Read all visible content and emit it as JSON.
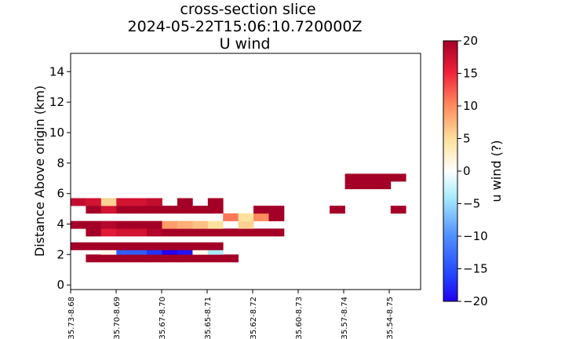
{
  "chart_data": {
    "type": "heatmap",
    "title_lines": [
      "cross-section slice",
      "2024-05-22T15:06:10.720000Z",
      "U wind"
    ],
    "ylabel": "Distance Above origin (km)",
    "xlabel": "",
    "ylim": [
      -0.3,
      15.2
    ],
    "y_ticks": [
      0,
      2,
      4,
      6,
      8,
      10,
      12,
      14
    ],
    "x_tick_labels": [
      "35.73-8.68",
      "35.70-8.69",
      "35.67-8.70",
      "35.65-8.71",
      "35.62-8.72",
      "35.60-8.73",
      "35.57-8.74",
      "35.54-8.75"
    ],
    "n_columns": 23,
    "grid": false,
    "colorbar": {
      "label": "u wind (?)",
      "range": [
        -20,
        20
      ],
      "ticks": [
        20,
        15,
        10,
        5,
        0,
        -5,
        -10,
        -15,
        -20
      ],
      "colormap": "RdYlBu_r"
    },
    "cells": [
      {
        "col": 1,
        "y": [
          1.5,
          2.0
        ],
        "u": 20
      },
      {
        "col": 2,
        "y": [
          1.5,
          2.0
        ],
        "u": 20
      },
      {
        "col": 3,
        "y": [
          1.5,
          2.0
        ],
        "u": 20
      },
      {
        "col": 4,
        "y": [
          1.5,
          2.0
        ],
        "u": 20
      },
      {
        "col": 5,
        "y": [
          1.5,
          2.0
        ],
        "u": 20
      },
      {
        "col": 6,
        "y": [
          1.5,
          2.0
        ],
        "u": 20
      },
      {
        "col": 7,
        "y": [
          1.5,
          2.0
        ],
        "u": 20
      },
      {
        "col": 8,
        "y": [
          1.5,
          2.0
        ],
        "u": 20
      },
      {
        "col": 9,
        "y": [
          1.5,
          2.0
        ],
        "u": 20
      },
      {
        "col": 10,
        "y": [
          1.5,
          2.0
        ],
        "u": 20
      },
      {
        "col": 2,
        "y": [
          2.0,
          2.5
        ],
        "u": 1
      },
      {
        "col": 3,
        "y": [
          2.0,
          2.5
        ],
        "u": -14
      },
      {
        "col": 4,
        "y": [
          2.0,
          2.5
        ],
        "u": -14
      },
      {
        "col": 5,
        "y": [
          2.0,
          2.5
        ],
        "u": -17
      },
      {
        "col": 6,
        "y": [
          2.0,
          2.5
        ],
        "u": -20
      },
      {
        "col": 7,
        "y": [
          2.0,
          2.5
        ],
        "u": -19
      },
      {
        "col": 8,
        "y": [
          2.0,
          2.5
        ],
        "u": 1
      },
      {
        "col": 9,
        "y": [
          2.0,
          2.5
        ],
        "u": -4
      },
      {
        "col": 0,
        "y": [
          2.3,
          2.8
        ],
        "u": 20
      },
      {
        "col": 1,
        "y": [
          2.3,
          2.8
        ],
        "u": 20
      },
      {
        "col": 2,
        "y": [
          2.3,
          2.8
        ],
        "u": 20
      },
      {
        "col": 3,
        "y": [
          2.3,
          2.8
        ],
        "u": 20
      },
      {
        "col": 4,
        "y": [
          2.3,
          2.8
        ],
        "u": 20
      },
      {
        "col": 5,
        "y": [
          2.3,
          2.8
        ],
        "u": 20
      },
      {
        "col": 6,
        "y": [
          2.3,
          2.8
        ],
        "u": 20
      },
      {
        "col": 7,
        "y": [
          2.3,
          2.8
        ],
        "u": 20
      },
      {
        "col": 8,
        "y": [
          2.3,
          2.8
        ],
        "u": 20
      },
      {
        "col": 9,
        "y": [
          2.3,
          2.8
        ],
        "u": 20
      },
      {
        "col": 1,
        "y": [
          3.2,
          3.7
        ],
        "u": 20
      },
      {
        "col": 2,
        "y": [
          3.2,
          3.7
        ],
        "u": 16
      },
      {
        "col": 3,
        "y": [
          3.2,
          3.7
        ],
        "u": 17
      },
      {
        "col": 4,
        "y": [
          3.2,
          3.7
        ],
        "u": 17
      },
      {
        "col": 5,
        "y": [
          3.2,
          3.7
        ],
        "u": 19
      },
      {
        "col": 6,
        "y": [
          3.2,
          3.7
        ],
        "u": 20
      },
      {
        "col": 7,
        "y": [
          3.2,
          3.7
        ],
        "u": 20
      },
      {
        "col": 8,
        "y": [
          3.2,
          3.7
        ],
        "u": 20
      },
      {
        "col": 9,
        "y": [
          3.2,
          3.7
        ],
        "u": 20
      },
      {
        "col": 10,
        "y": [
          3.2,
          3.7
        ],
        "u": 20
      },
      {
        "col": 11,
        "y": [
          3.2,
          3.7
        ],
        "u": 20
      },
      {
        "col": 12,
        "y": [
          3.2,
          3.7
        ],
        "u": 20
      },
      {
        "col": 13,
        "y": [
          3.2,
          3.7
        ],
        "u": 20
      },
      {
        "col": 0,
        "y": [
          3.7,
          4.2
        ],
        "u": 20
      },
      {
        "col": 1,
        "y": [
          3.7,
          4.2
        ],
        "u": 20
      },
      {
        "col": 2,
        "y": [
          3.7,
          4.2
        ],
        "u": 19
      },
      {
        "col": 3,
        "y": [
          3.7,
          4.2
        ],
        "u": 20
      },
      {
        "col": 4,
        "y": [
          3.7,
          4.2
        ],
        "u": 20
      },
      {
        "col": 5,
        "y": [
          3.7,
          4.2
        ],
        "u": 20
      },
      {
        "col": 6,
        "y": [
          3.7,
          4.2
        ],
        "u": 9
      },
      {
        "col": 7,
        "y": [
          3.7,
          4.2
        ],
        "u": 8
      },
      {
        "col": 8,
        "y": [
          3.7,
          4.2
        ],
        "u": 7
      },
      {
        "col": 9,
        "y": [
          3.7,
          4.2
        ],
        "u": 5
      },
      {
        "col": 11,
        "y": [
          3.7,
          4.2
        ],
        "u": 6
      },
      {
        "col": 10,
        "y": [
          4.2,
          4.7
        ],
        "u": 11
      },
      {
        "col": 11,
        "y": [
          4.2,
          4.7
        ],
        "u": 5
      },
      {
        "col": 12,
        "y": [
          4.2,
          4.7
        ],
        "u": 10
      },
      {
        "col": 13,
        "y": [
          4.2,
          4.7
        ],
        "u": 20
      },
      {
        "col": 1,
        "y": [
          4.7,
          5.2
        ],
        "u": 20
      },
      {
        "col": 2,
        "y": [
          4.7,
          5.2
        ],
        "u": 17
      },
      {
        "col": 3,
        "y": [
          4.7,
          5.2
        ],
        "u": 20
      },
      {
        "col": 4,
        "y": [
          4.7,
          5.2
        ],
        "u": 20
      },
      {
        "col": 5,
        "y": [
          4.7,
          5.2
        ],
        "u": 20
      },
      {
        "col": 6,
        "y": [
          4.7,
          5.2
        ],
        "u": 20
      },
      {
        "col": 7,
        "y": [
          4.7,
          5.2
        ],
        "u": 20
      },
      {
        "col": 8,
        "y": [
          4.7,
          5.2
        ],
        "u": 20
      },
      {
        "col": 9,
        "y": [
          4.7,
          5.2
        ],
        "u": 20
      },
      {
        "col": 12,
        "y": [
          4.7,
          5.2
        ],
        "u": 20
      },
      {
        "col": 13,
        "y": [
          4.7,
          5.2
        ],
        "u": 20
      },
      {
        "col": 17,
        "y": [
          4.7,
          5.2
        ],
        "u": 20
      },
      {
        "col": 21,
        "y": [
          4.7,
          5.2
        ],
        "u": 20
      },
      {
        "col": 0,
        "y": [
          5.2,
          5.7
        ],
        "u": 18
      },
      {
        "col": 1,
        "y": [
          5.2,
          5.7
        ],
        "u": 17
      },
      {
        "col": 2,
        "y": [
          5.2,
          5.7
        ],
        "u": 6
      },
      {
        "col": 3,
        "y": [
          5.2,
          5.7
        ],
        "u": 17
      },
      {
        "col": 4,
        "y": [
          5.2,
          5.7
        ],
        "u": 17
      },
      {
        "col": 5,
        "y": [
          5.2,
          5.7
        ],
        "u": 18
      },
      {
        "col": 7,
        "y": [
          5.2,
          5.7
        ],
        "u": 20
      },
      {
        "col": 9,
        "y": [
          5.2,
          5.7
        ],
        "u": 20
      },
      {
        "col": 18,
        "y": [
          6.3,
          6.8
        ],
        "u": 20
      },
      {
        "col": 19,
        "y": [
          6.3,
          6.8
        ],
        "u": 20
      },
      {
        "col": 20,
        "y": [
          6.3,
          6.8
        ],
        "u": 20
      },
      {
        "col": 18,
        "y": [
          6.8,
          7.3
        ],
        "u": 20
      },
      {
        "col": 19,
        "y": [
          6.8,
          7.3
        ],
        "u": 20
      },
      {
        "col": 20,
        "y": [
          6.8,
          7.3
        ],
        "u": 20
      },
      {
        "col": 21,
        "y": [
          6.8,
          7.3
        ],
        "u": 20
      }
    ]
  }
}
